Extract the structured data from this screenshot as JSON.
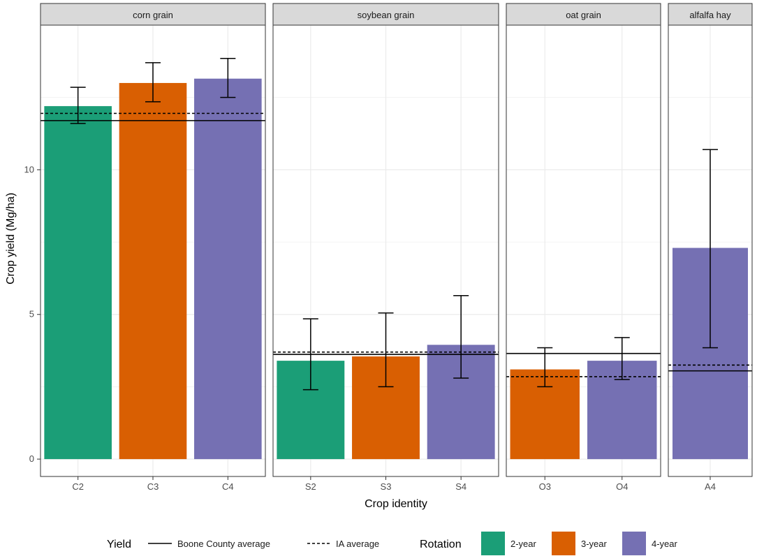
{
  "chart_data": {
    "type": "bar",
    "xlabel": "Crop identity",
    "ylabel": "Crop yield (Mg/ha)",
    "ylim": [
      -0.6,
      15
    ],
    "y_ticks": [
      0,
      5,
      10
    ],
    "grid": true,
    "colors": {
      "2-year": "#1b9e77",
      "3-year": "#d95f02",
      "4-year": "#7570b3",
      "strip": "#d9d9d9",
      "grid": "#ebebeb",
      "line": "#000000"
    },
    "facets": [
      {
        "title": "corn grain",
        "categories": [
          "C2",
          "C3",
          "C4"
        ],
        "rotation": [
          "2-year",
          "3-year",
          "4-year"
        ],
        "values": [
          12.2,
          13.0,
          13.15
        ],
        "error_low": [
          11.6,
          12.35,
          12.5
        ],
        "error_high": [
          12.85,
          13.7,
          13.85
        ],
        "boone_avg": 11.7,
        "ia_avg": 11.95
      },
      {
        "title": "soybean grain",
        "categories": [
          "S2",
          "S3",
          "S4"
        ],
        "rotation": [
          "2-year",
          "3-year",
          "4-year"
        ],
        "values": [
          3.4,
          3.55,
          3.95
        ],
        "error_low": [
          2.4,
          2.5,
          2.8
        ],
        "error_high": [
          4.85,
          5.05,
          5.65
        ],
        "boone_avg": 3.62,
        "ia_avg": 3.7
      },
      {
        "title": "oat grain",
        "categories": [
          "O3",
          "O4"
        ],
        "rotation": [
          "3-year",
          "4-year"
        ],
        "values": [
          3.1,
          3.4
        ],
        "error_low": [
          2.5,
          2.75
        ],
        "error_high": [
          3.85,
          4.2
        ],
        "boone_avg": 3.65,
        "ia_avg": 2.85
      },
      {
        "title": "alfalfa hay",
        "categories": [
          "A4"
        ],
        "rotation": [
          "4-year"
        ],
        "values": [
          7.3
        ],
        "error_low": [
          3.85
        ],
        "error_high": [
          10.7
        ],
        "boone_avg": 3.05,
        "ia_avg": 3.25
      }
    ],
    "legend": {
      "position": "bottom",
      "yield_title": "Yield",
      "yield_items": [
        {
          "label": "Boone County average",
          "style": "solid"
        },
        {
          "label": "IA average",
          "style": "dashed"
        }
      ],
      "rotation_title": "Rotation",
      "rotation_items": [
        "2-year",
        "3-year",
        "4-year"
      ]
    }
  }
}
